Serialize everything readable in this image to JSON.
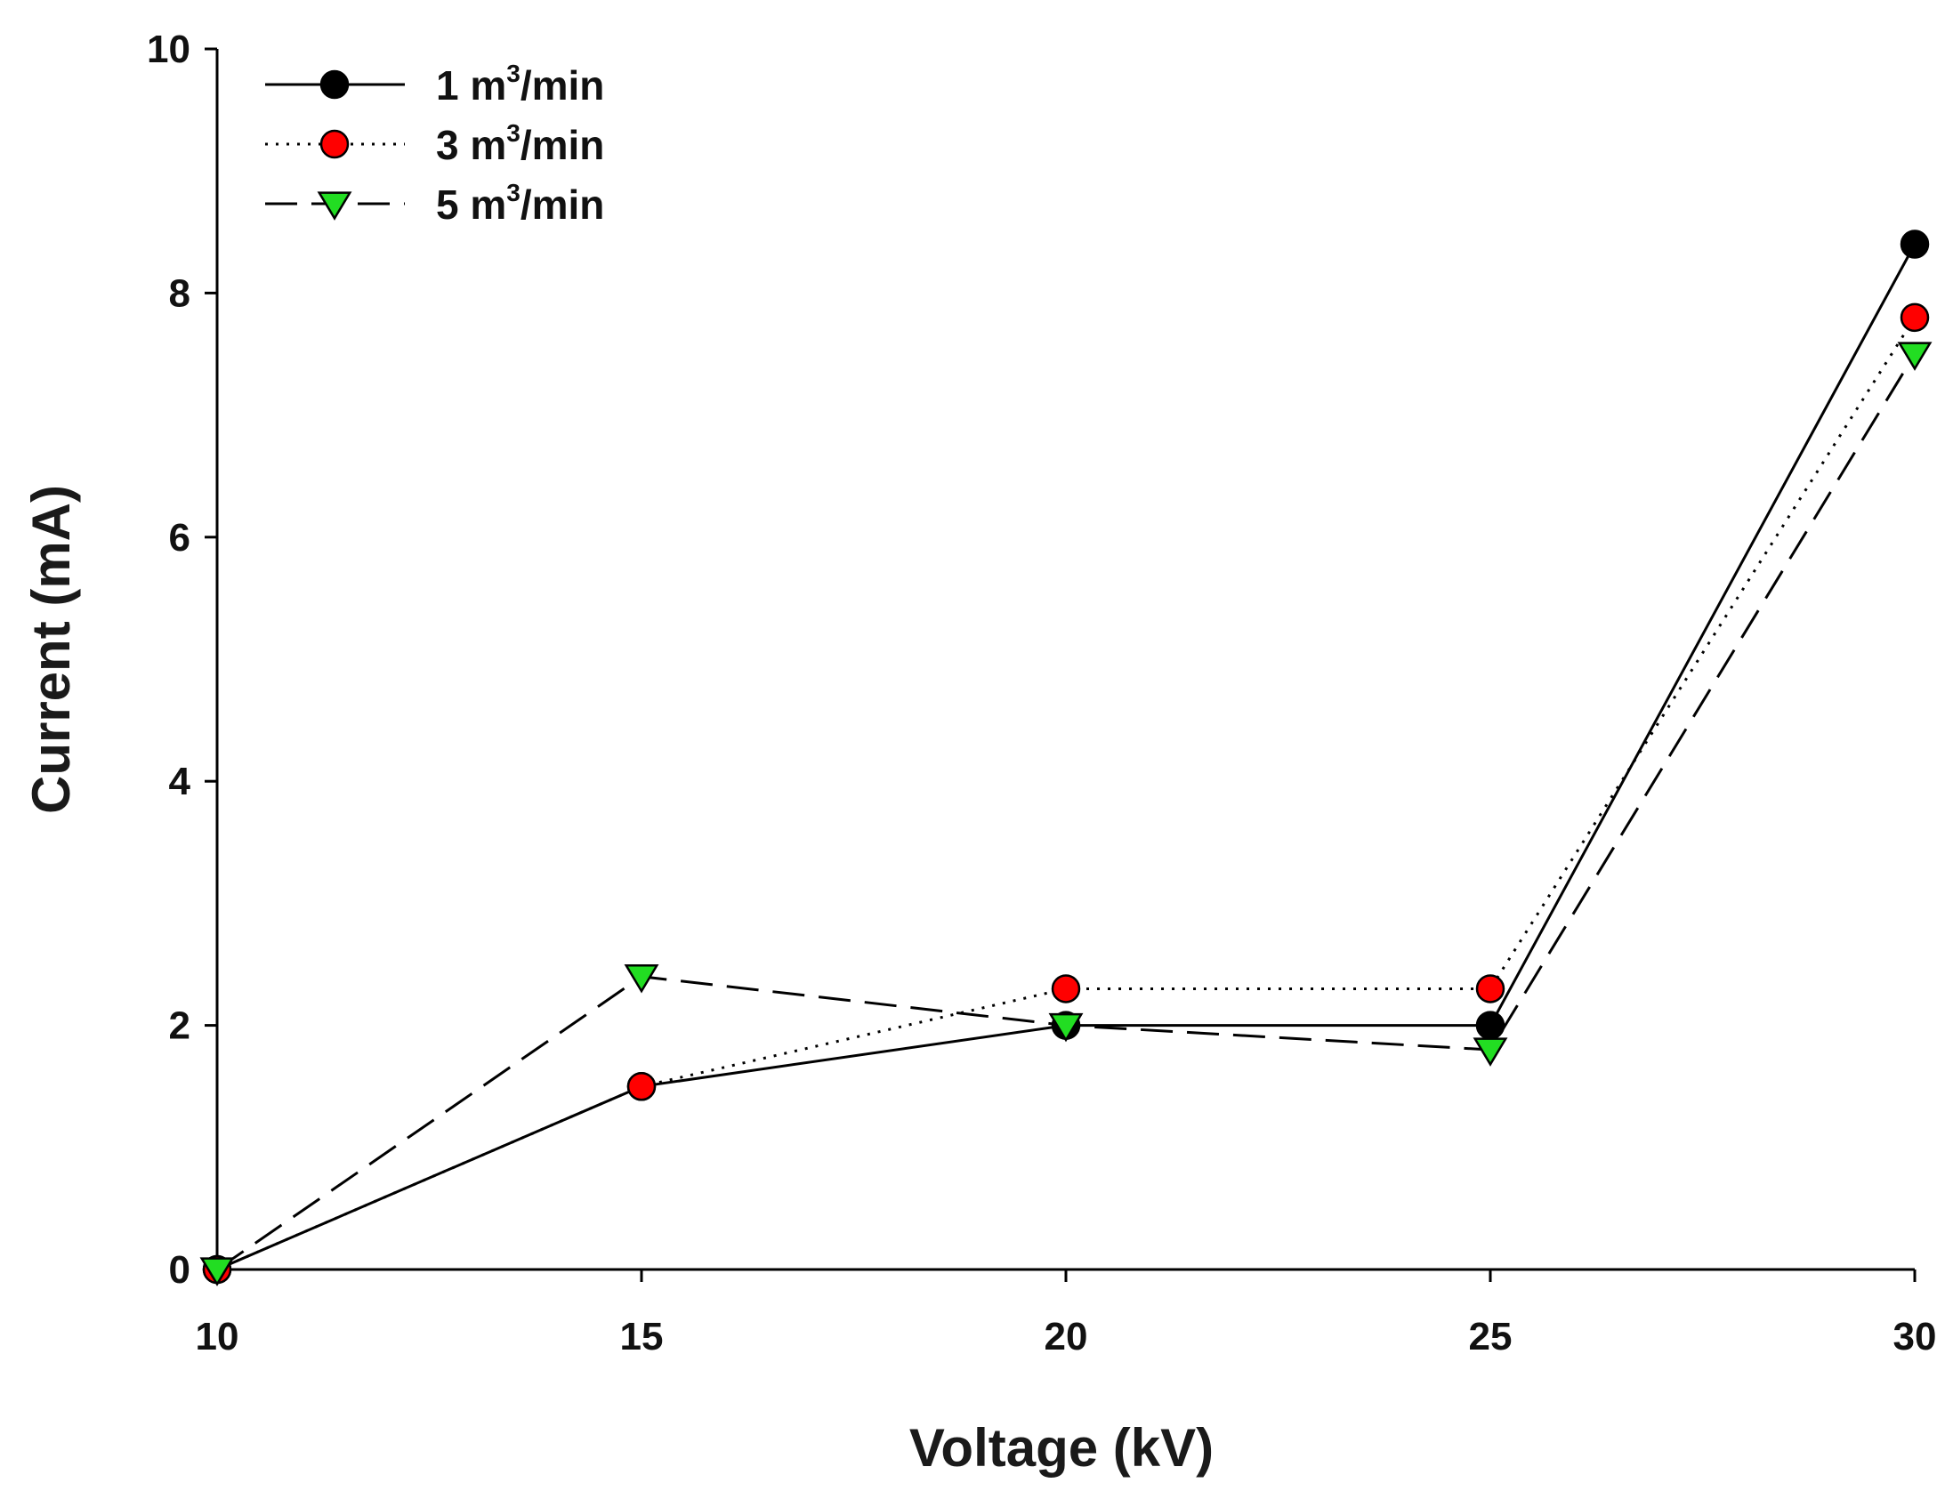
{
  "chart_data": {
    "type": "line",
    "title": "",
    "xlabel": "Voltage (kV)",
    "ylabel": "Current (mA)",
    "xlim": [
      10,
      30
    ],
    "ylim": [
      0,
      10
    ],
    "x_ticks": [
      "10",
      "15",
      "20",
      "25",
      "30"
    ],
    "y_ticks": [
      "0",
      "2",
      "4",
      "6",
      "8",
      "10"
    ],
    "legend_position": "top-left",
    "grid": false,
    "x": [
      10,
      15,
      20,
      25,
      30
    ],
    "series": [
      {
        "name_prefix": "1 m",
        "name_sup": "3",
        "name_suffix": "/min",
        "values": [
          0,
          1.5,
          2.0,
          2.0,
          8.4
        ],
        "marker": "circle",
        "color": "#000000",
        "line": "solid"
      },
      {
        "name_prefix": "3 m",
        "name_sup": "3",
        "name_suffix": "/min",
        "values": [
          0,
          1.5,
          2.3,
          2.3,
          7.8
        ],
        "marker": "circle",
        "color": "#ff0000",
        "line": "dotted"
      },
      {
        "name_prefix": "5 m",
        "name_sup": "3",
        "name_suffix": "/min",
        "values": [
          0,
          2.4,
          2.0,
          1.8,
          7.5
        ],
        "marker": "triangle-down",
        "color": "#22dd22",
        "line": "dashed"
      }
    ]
  }
}
